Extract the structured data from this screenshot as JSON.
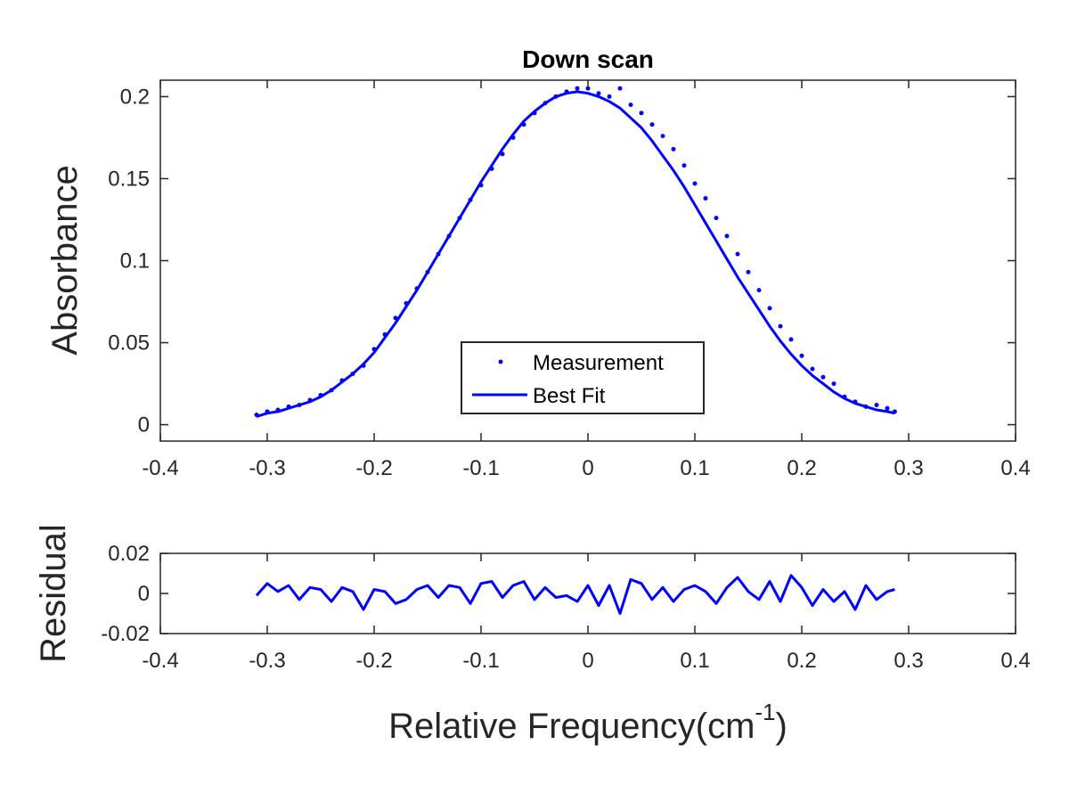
{
  "colors": {
    "data": "#0000ff",
    "axes": "#262626",
    "background": "#ffffff"
  },
  "chart_data": [
    {
      "type": "scatter",
      "title": "Down scan",
      "xlabel": "",
      "ylabel": "Absorbance",
      "xlim": [
        -0.4,
        0.4
      ],
      "ylim": [
        -0.01,
        0.21
      ],
      "xticks": [
        -0.4,
        -0.3,
        -0.2,
        -0.1,
        0,
        0.1,
        0.2,
        0.3,
        0.4
      ],
      "xtick_labels": [
        "-0.4",
        "-0.3",
        "-0.2",
        "-0.1",
        "0",
        "0.1",
        "0.2",
        "0.3",
        "0.4"
      ],
      "yticks": [
        0,
        0.05,
        0.1,
        0.15,
        0.2
      ],
      "ytick_labels": [
        "0",
        "0.05",
        "0.1",
        "0.15",
        "0.2"
      ],
      "grid": false,
      "legend": {
        "position": "bottom-center",
        "entries": [
          "Measurement",
          "Best Fit"
        ]
      },
      "series": [
        {
          "name": "Measurement",
          "style": "points",
          "x": [
            -0.31,
            -0.3,
            -0.29,
            -0.28,
            -0.27,
            -0.26,
            -0.25,
            -0.24,
            -0.23,
            -0.22,
            -0.21,
            -0.2,
            -0.19,
            -0.18,
            -0.17,
            -0.16,
            -0.15,
            -0.14,
            -0.13,
            -0.12,
            -0.11,
            -0.1,
            -0.09,
            -0.08,
            -0.07,
            -0.06,
            -0.05,
            -0.04,
            -0.03,
            -0.02,
            -0.01,
            0,
            0.01,
            0.02,
            0.03,
            0.04,
            0.05,
            0.06,
            0.07,
            0.08,
            0.09,
            0.1,
            0.11,
            0.12,
            0.13,
            0.14,
            0.15,
            0.16,
            0.17,
            0.18,
            0.19,
            0.2,
            0.21,
            0.22,
            0.23,
            0.24,
            0.25,
            0.26,
            0.27,
            0.28,
            0.287
          ],
          "y": [
            0.006,
            0.008,
            0.009,
            0.011,
            0.012,
            0.015,
            0.018,
            0.021,
            0.027,
            0.031,
            0.036,
            0.046,
            0.055,
            0.065,
            0.074,
            0.083,
            0.093,
            0.104,
            0.115,
            0.126,
            0.137,
            0.146,
            0.156,
            0.165,
            0.175,
            0.183,
            0.19,
            0.196,
            0.2,
            0.203,
            0.205,
            0.205,
            0.202,
            0.2,
            0.205,
            0.195,
            0.19,
            0.183,
            0.176,
            0.168,
            0.158,
            0.147,
            0.138,
            0.126,
            0.115,
            0.104,
            0.093,
            0.082,
            0.071,
            0.06,
            0.052,
            0.042,
            0.034,
            0.029,
            0.025,
            0.017,
            0.014,
            0.011,
            0.012,
            0.01,
            0.008
          ]
        },
        {
          "name": "Best Fit",
          "style": "line",
          "x": [
            -0.31,
            -0.3,
            -0.29,
            -0.28,
            -0.27,
            -0.26,
            -0.25,
            -0.24,
            -0.23,
            -0.22,
            -0.21,
            -0.2,
            -0.19,
            -0.18,
            -0.17,
            -0.16,
            -0.15,
            -0.14,
            -0.13,
            -0.12,
            -0.11,
            -0.1,
            -0.09,
            -0.08,
            -0.07,
            -0.06,
            -0.05,
            -0.04,
            -0.03,
            -0.02,
            -0.01,
            0,
            0.01,
            0.02,
            0.03,
            0.04,
            0.05,
            0.06,
            0.07,
            0.08,
            0.09,
            0.1,
            0.11,
            0.12,
            0.13,
            0.14,
            0.15,
            0.16,
            0.17,
            0.18,
            0.19,
            0.2,
            0.21,
            0.22,
            0.23,
            0.24,
            0.25,
            0.26,
            0.27,
            0.28,
            0.287
          ],
          "y": [
            0.005,
            0.007,
            0.008,
            0.01,
            0.012,
            0.014,
            0.017,
            0.021,
            0.026,
            0.031,
            0.037,
            0.044,
            0.053,
            0.062,
            0.072,
            0.082,
            0.093,
            0.104,
            0.115,
            0.126,
            0.137,
            0.148,
            0.158,
            0.168,
            0.177,
            0.185,
            0.191,
            0.196,
            0.2,
            0.202,
            0.203,
            0.202,
            0.2,
            0.197,
            0.193,
            0.187,
            0.181,
            0.173,
            0.164,
            0.155,
            0.145,
            0.134,
            0.123,
            0.112,
            0.101,
            0.09,
            0.08,
            0.07,
            0.06,
            0.051,
            0.043,
            0.036,
            0.03,
            0.025,
            0.02,
            0.016,
            0.013,
            0.011,
            0.009,
            0.008,
            0.007
          ]
        }
      ]
    },
    {
      "type": "line",
      "title": "",
      "xlabel": "Relative Frequency(cm",
      "xlabel_superscript": "-1",
      "xlabel_suffix": ")",
      "ylabel": "Residual",
      "xlim": [
        -0.4,
        0.4
      ],
      "ylim": [
        -0.02,
        0.02
      ],
      "xticks": [
        -0.4,
        -0.3,
        -0.2,
        -0.1,
        0,
        0.1,
        0.2,
        0.3,
        0.4
      ],
      "xtick_labels": [
        "-0.4",
        "-0.3",
        "-0.2",
        "-0.1",
        "0",
        "0.1",
        "0.2",
        "0.3",
        "0.4"
      ],
      "yticks": [
        -0.02,
        0,
        0.02
      ],
      "ytick_labels": [
        "-0.02",
        "0",
        "0.02"
      ],
      "grid": false,
      "series": [
        {
          "x": [
            -0.31,
            -0.3,
            -0.29,
            -0.28,
            -0.27,
            -0.26,
            -0.25,
            -0.24,
            -0.23,
            -0.22,
            -0.21,
            -0.2,
            -0.19,
            -0.18,
            -0.17,
            -0.16,
            -0.15,
            -0.14,
            -0.13,
            -0.12,
            -0.11,
            -0.1,
            -0.09,
            -0.08,
            -0.07,
            -0.06,
            -0.05,
            -0.04,
            -0.03,
            -0.02,
            -0.01,
            0,
            0.01,
            0.02,
            0.03,
            0.04,
            0.05,
            0.06,
            0.07,
            0.08,
            0.09,
            0.1,
            0.11,
            0.12,
            0.13,
            0.14,
            0.15,
            0.16,
            0.17,
            0.18,
            0.19,
            0.2,
            0.21,
            0.22,
            0.23,
            0.24,
            0.25,
            0.26,
            0.27,
            0.28,
            0.287
          ],
          "y": [
            -0.001,
            0.005,
            0.001,
            0.004,
            -0.003,
            0.003,
            0.002,
            -0.004,
            0.003,
            0.001,
            -0.008,
            0.002,
            0.001,
            -0.005,
            -0.003,
            0.002,
            0.004,
            -0.002,
            0.004,
            0.003,
            -0.005,
            0.005,
            0.006,
            -0.002,
            0.004,
            0.006,
            -0.003,
            0.003,
            -0.002,
            -0.001,
            -0.004,
            0.004,
            -0.006,
            0.004,
            -0.01,
            0.007,
            0.005,
            -0.003,
            0.003,
            -0.004,
            0.002,
            0.004,
            0.001,
            -0.005,
            0.003,
            0.008,
            0.001,
            -0.003,
            0.006,
            -0.004,
            0.009,
            0.003,
            -0.006,
            0.002,
            -0.004,
            0.001,
            -0.008,
            0.004,
            -0.003,
            0.001,
            0.002
          ]
        }
      ]
    }
  ]
}
